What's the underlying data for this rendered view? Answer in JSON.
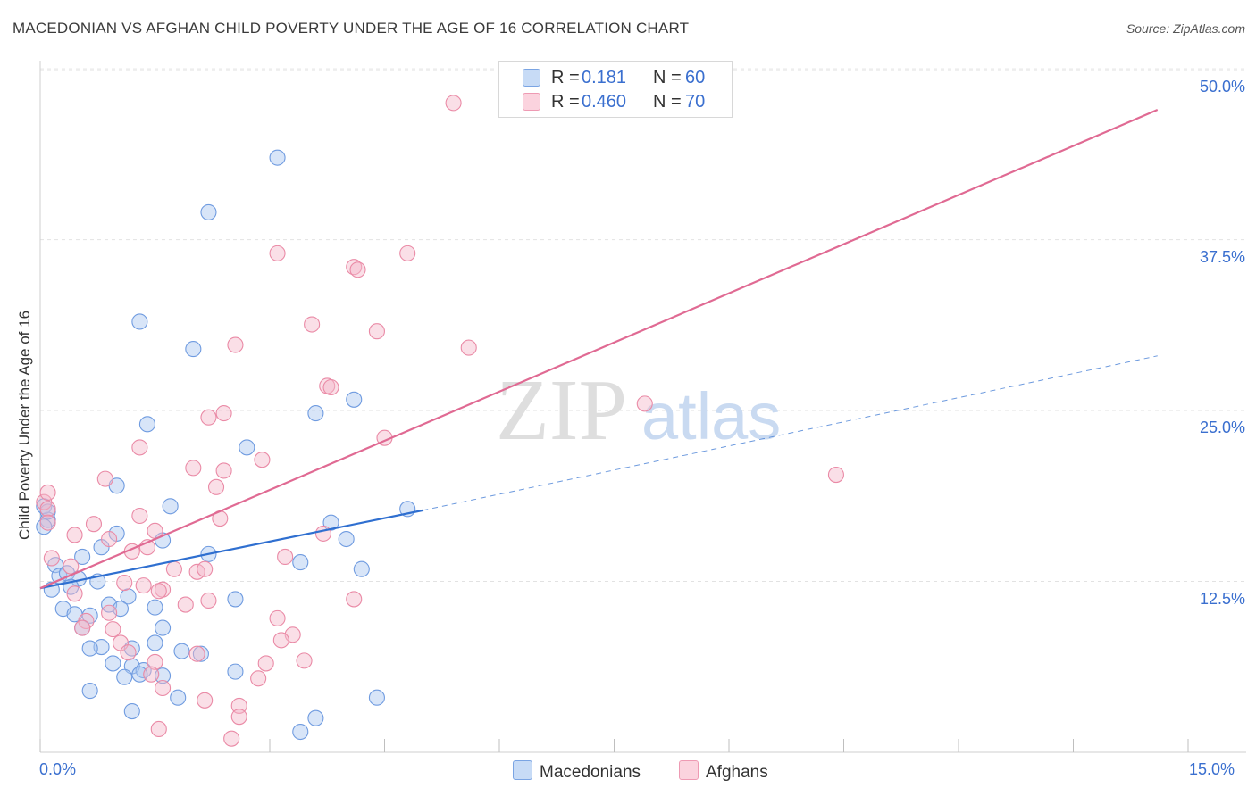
{
  "title": "MACEDONIAN VS AFGHAN CHILD POVERTY UNDER THE AGE OF 16 CORRELATION CHART",
  "source": "Source: ZipAtlas.com",
  "watermark": {
    "zip": "ZIP",
    "atlas": "atlas"
  },
  "legend": {
    "rows": [
      {
        "r_label": "R =",
        "r_value": "0.181",
        "n_label": "N =",
        "n_value": "60",
        "color": "#a9c6ef"
      },
      {
        "r_label": "R =",
        "r_value": "0.460",
        "n_label": "N =",
        "n_value": "70",
        "color": "#f5b8c9"
      }
    ]
  },
  "bottom_legend": [
    {
      "label": "Macedonians",
      "color": "#a9c6ef"
    },
    {
      "label": "Afghans",
      "color": "#f5b8c9"
    }
  ],
  "chart_data": {
    "type": "scatter",
    "title": "MACEDONIAN VS AFGHAN CHILD POVERTY UNDER THE AGE OF 16 CORRELATION CHART",
    "xlabel": "",
    "ylabel": "Child Poverty Under the Age of 16",
    "xlim": [
      0,
      15
    ],
    "ylim": [
      0,
      52
    ],
    "x_tick_labels": [
      "0.0%",
      "15.0%"
    ],
    "y_ticks": [
      12.5,
      25.0,
      37.5,
      50.0
    ],
    "y_tick_labels": [
      "12.5%",
      "25.0%",
      "37.5%",
      "50.0%"
    ],
    "grid": true,
    "series": [
      {
        "name": "Macedonians",
        "color": "#6f9be0",
        "fill": "#a9c6ef",
        "trend": {
          "x0": 0.0,
          "y0": 12.0,
          "x1": 5.0,
          "y1": 17.7,
          "dash_to_x": 14.6,
          "dash_to_y": 29.0,
          "color": "#2f6fd0"
        },
        "points": [
          [
            3.1,
            43.5
          ],
          [
            2.2,
            39.5
          ],
          [
            1.3,
            31.5
          ],
          [
            2.0,
            29.5
          ],
          [
            4.1,
            25.8
          ],
          [
            3.6,
            24.8
          ],
          [
            1.4,
            24.0
          ],
          [
            2.7,
            22.3
          ],
          [
            1.0,
            19.5
          ],
          [
            1.7,
            18.0
          ],
          [
            4.8,
            17.8
          ],
          [
            0.1,
            17.0
          ],
          [
            0.05,
            16.5
          ],
          [
            3.8,
            16.8
          ],
          [
            1.0,
            16.0
          ],
          [
            1.6,
            15.5
          ],
          [
            4.0,
            15.6
          ],
          [
            0.8,
            15.0
          ],
          [
            2.2,
            14.5
          ],
          [
            0.55,
            14.3
          ],
          [
            0.2,
            13.7
          ],
          [
            3.4,
            13.9
          ],
          [
            4.2,
            13.4
          ],
          [
            0.25,
            12.9
          ],
          [
            0.35,
            13.1
          ],
          [
            0.5,
            12.7
          ],
          [
            0.75,
            12.5
          ],
          [
            0.15,
            11.9
          ],
          [
            0.4,
            12.1
          ],
          [
            1.15,
            11.4
          ],
          [
            2.55,
            11.2
          ],
          [
            0.9,
            10.8
          ],
          [
            1.05,
            10.5
          ],
          [
            1.5,
            10.6
          ],
          [
            0.3,
            10.5
          ],
          [
            0.45,
            10.1
          ],
          [
            0.65,
            10.0
          ],
          [
            0.55,
            9.1
          ],
          [
            1.6,
            9.1
          ],
          [
            1.5,
            8.0
          ],
          [
            0.8,
            7.7
          ],
          [
            0.65,
            7.6
          ],
          [
            1.85,
            7.4
          ],
          [
            2.1,
            7.2
          ],
          [
            1.2,
            7.6
          ],
          [
            0.95,
            6.5
          ],
          [
            1.2,
            6.3
          ],
          [
            1.35,
            6.0
          ],
          [
            1.3,
            5.7
          ],
          [
            2.55,
            5.9
          ],
          [
            1.1,
            5.5
          ],
          [
            1.6,
            5.6
          ],
          [
            0.65,
            4.5
          ],
          [
            1.8,
            4.0
          ],
          [
            4.4,
            4.0
          ],
          [
            1.2,
            3.0
          ],
          [
            3.6,
            2.5
          ],
          [
            3.4,
            1.5
          ],
          [
            0.05,
            18.0
          ],
          [
            0.1,
            17.6
          ]
        ]
      },
      {
        "name": "Afghans",
        "color": "#ea8aa6",
        "fill": "#f5b8c9",
        "trend": {
          "x0": 0.0,
          "y0": 12.0,
          "x1": 14.6,
          "y1": 47.0,
          "color": "#e06a93"
        },
        "points": [
          [
            5.4,
            47.5
          ],
          [
            3.1,
            36.5
          ],
          [
            4.8,
            36.5
          ],
          [
            4.1,
            35.5
          ],
          [
            4.15,
            35.3
          ],
          [
            3.55,
            31.3
          ],
          [
            4.4,
            30.8
          ],
          [
            2.55,
            29.8
          ],
          [
            5.6,
            29.6
          ],
          [
            3.75,
            26.8
          ],
          [
            3.8,
            26.7
          ],
          [
            7.9,
            25.5
          ],
          [
            2.4,
            24.8
          ],
          [
            2.2,
            24.5
          ],
          [
            4.5,
            23.0
          ],
          [
            1.3,
            22.3
          ],
          [
            2.9,
            21.4
          ],
          [
            2.0,
            20.8
          ],
          [
            2.4,
            20.6
          ],
          [
            10.4,
            20.3
          ],
          [
            0.85,
            20.0
          ],
          [
            2.3,
            19.4
          ],
          [
            0.05,
            18.3
          ],
          [
            0.1,
            17.8
          ],
          [
            1.3,
            17.3
          ],
          [
            0.1,
            16.8
          ],
          [
            2.35,
            17.1
          ],
          [
            0.7,
            16.7
          ],
          [
            0.45,
            15.9
          ],
          [
            1.5,
            16.2
          ],
          [
            0.9,
            15.6
          ],
          [
            1.4,
            15.0
          ],
          [
            1.2,
            14.7
          ],
          [
            3.7,
            16.0
          ],
          [
            0.15,
            14.2
          ],
          [
            3.2,
            14.3
          ],
          [
            0.4,
            13.6
          ],
          [
            1.75,
            13.4
          ],
          [
            2.05,
            13.2
          ],
          [
            2.15,
            13.4
          ],
          [
            1.1,
            12.4
          ],
          [
            1.35,
            12.2
          ],
          [
            1.6,
            11.9
          ],
          [
            1.55,
            11.8
          ],
          [
            0.45,
            11.6
          ],
          [
            2.2,
            11.1
          ],
          [
            4.1,
            11.2
          ],
          [
            1.9,
            10.8
          ],
          [
            0.9,
            10.2
          ],
          [
            3.1,
            9.8
          ],
          [
            0.6,
            9.6
          ],
          [
            0.95,
            9.0
          ],
          [
            3.3,
            8.6
          ],
          [
            0.55,
            9.1
          ],
          [
            3.15,
            8.2
          ],
          [
            1.05,
            8.0
          ],
          [
            1.15,
            7.3
          ],
          [
            3.45,
            6.7
          ],
          [
            2.05,
            7.2
          ],
          [
            1.5,
            6.6
          ],
          [
            2.95,
            6.5
          ],
          [
            1.45,
            5.7
          ],
          [
            2.85,
            5.4
          ],
          [
            1.6,
            4.7
          ],
          [
            2.15,
            3.8
          ],
          [
            2.6,
            3.4
          ],
          [
            2.6,
            2.6
          ],
          [
            1.55,
            1.7
          ],
          [
            2.5,
            1.0
          ],
          [
            0.1,
            19.0
          ]
        ]
      }
    ]
  }
}
